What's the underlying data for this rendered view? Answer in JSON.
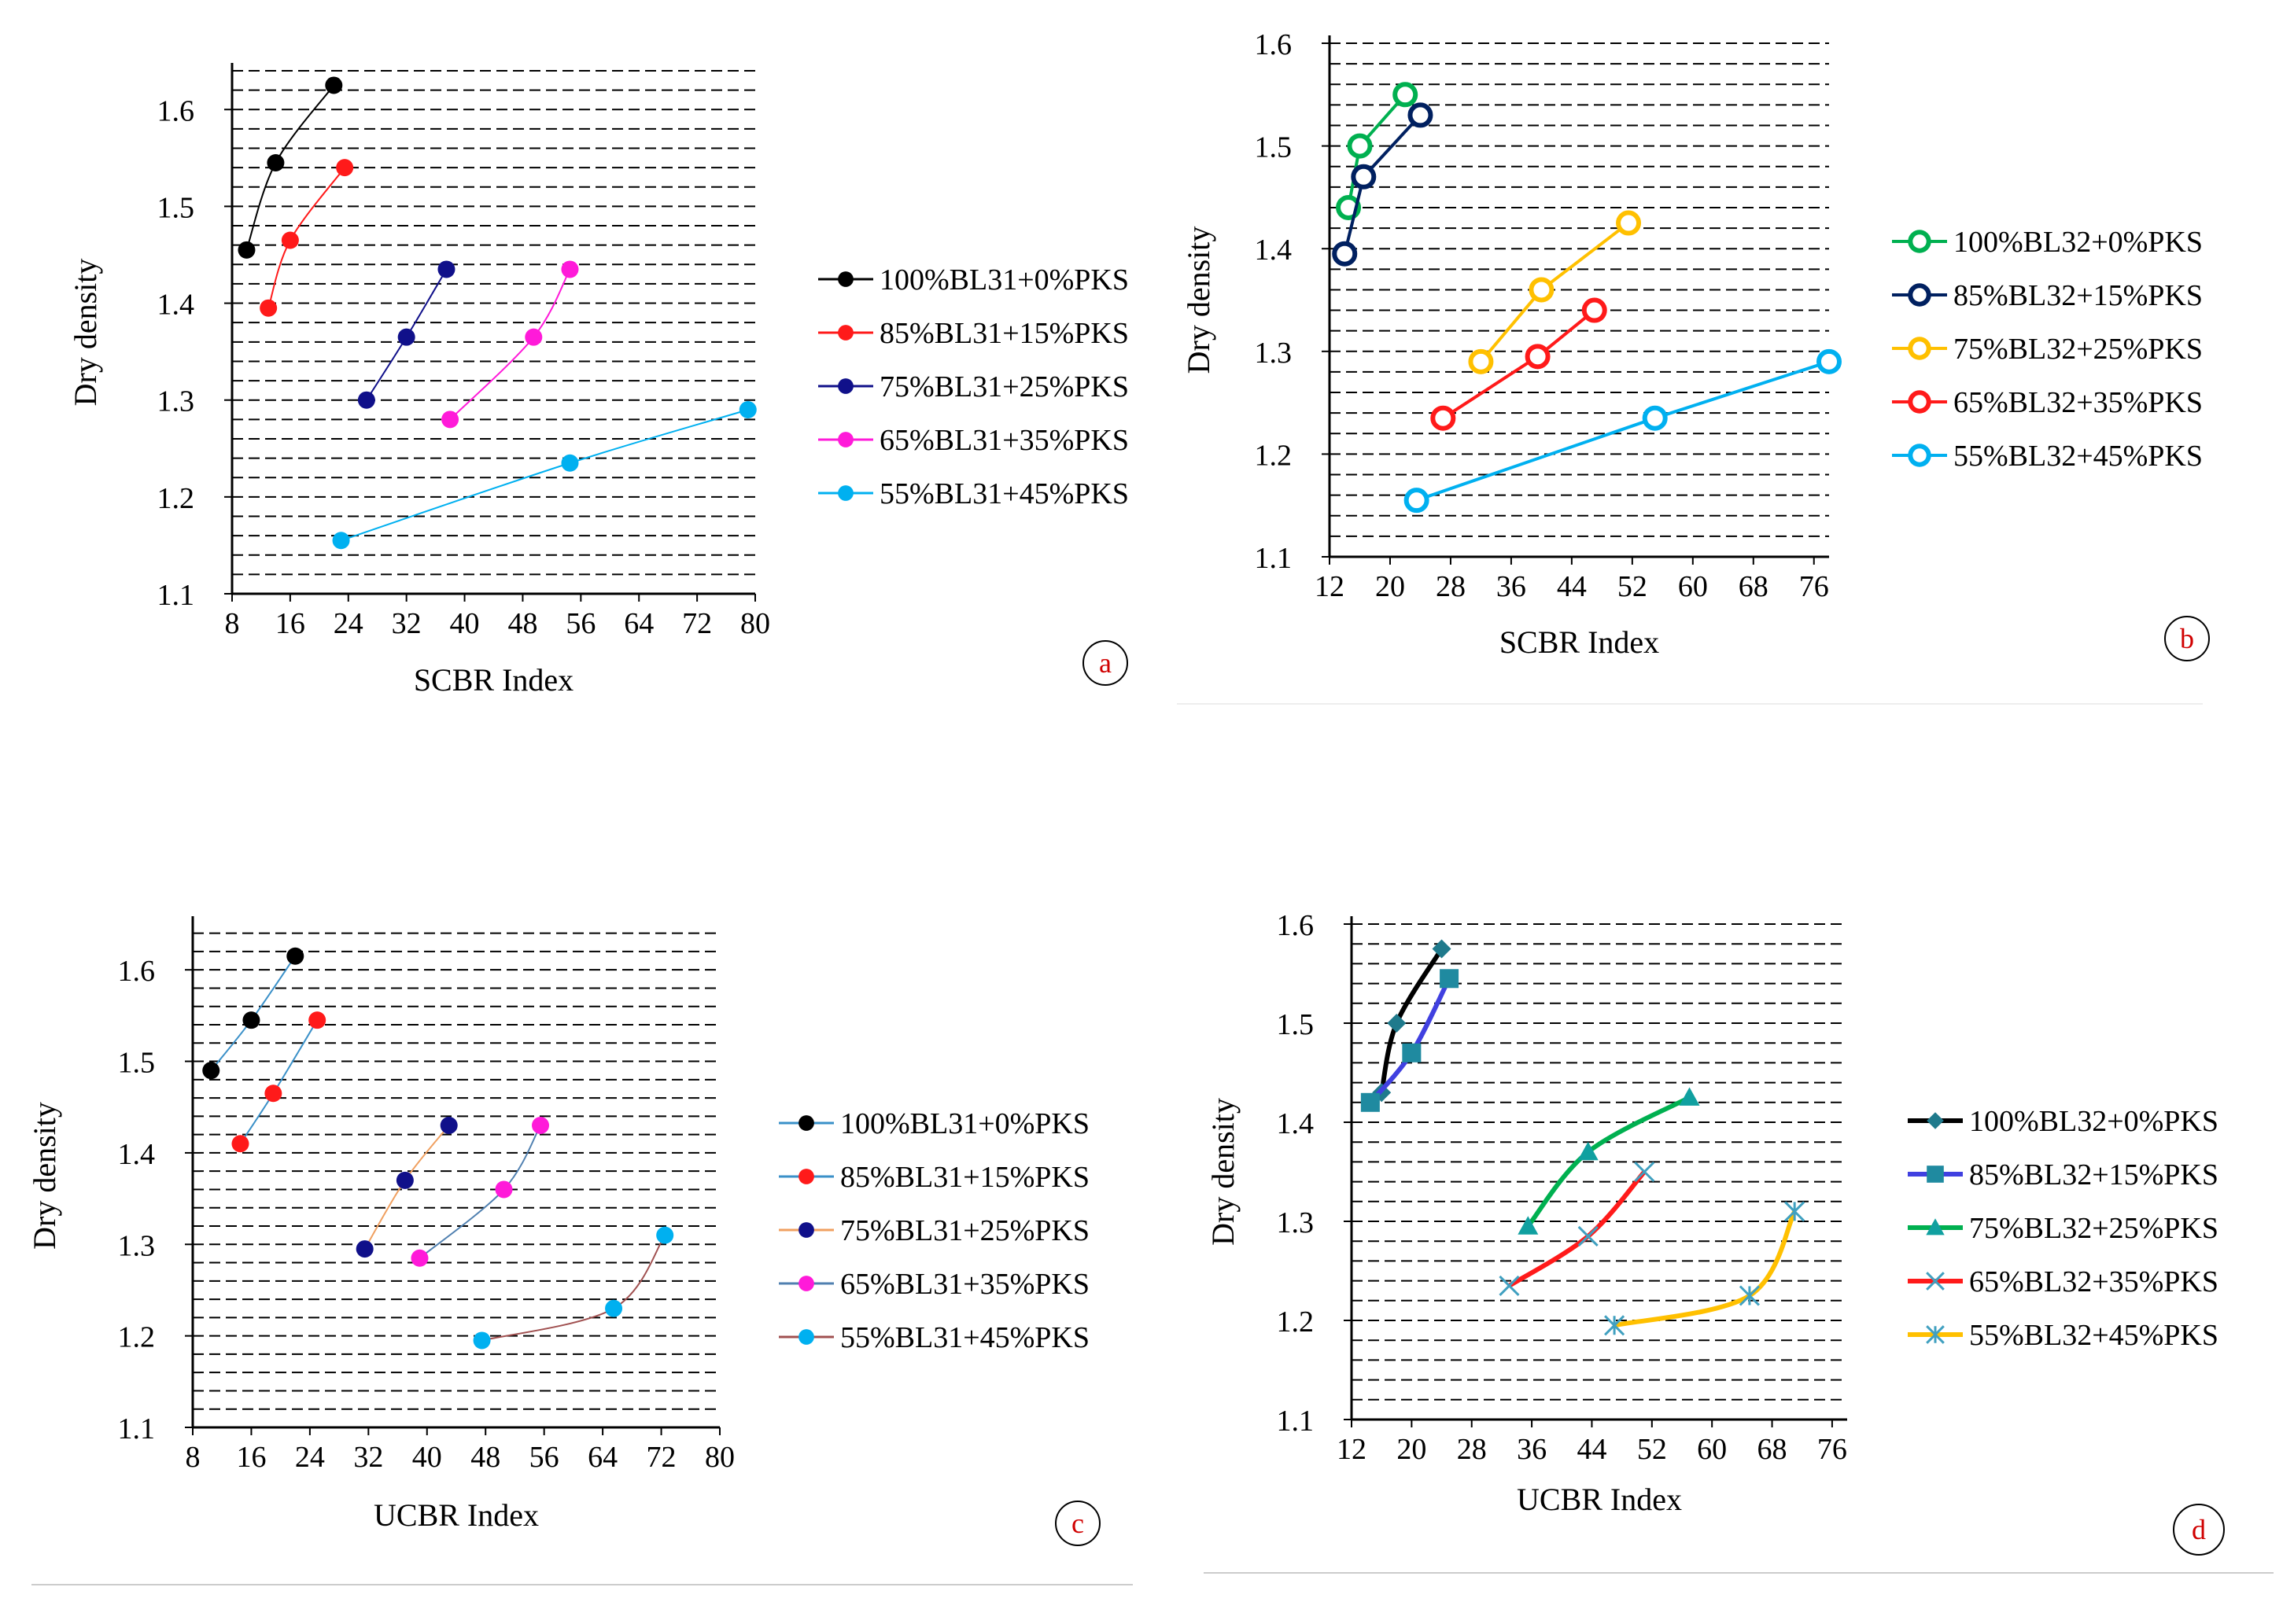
{
  "colors": {
    "black": "#000000",
    "red": "#ff1a1a",
    "navy": "#10108a",
    "magenta": "#ff1ad9",
    "cyan": "#00b0f0",
    "green": "#00b050",
    "dark_navy": "#002060",
    "orange": "#ffc000",
    "blue_violet": "#4040e0",
    "yellow": "#ffc000",
    "grid": "#000000",
    "panel_label": "#d00000"
  },
  "chart_data": [
    {
      "id": "a",
      "type": "line",
      "panel_label": "a",
      "xlabel": "SCBR Index",
      "ylabel": "Dry density",
      "xlim": [
        8,
        80
      ],
      "ylim": [
        1.1,
        1.64
      ],
      "xticks": [
        "8",
        "16",
        "24",
        "32",
        "40",
        "48",
        "56",
        "64",
        "72",
        "80"
      ],
      "yticks": [
        "1.1",
        "1.2",
        "1.3",
        "1.4",
        "1.5",
        "1.6"
      ],
      "grid": "dashed horizontal",
      "legend_position": "right",
      "series": [
        {
          "name": "100%BL31+0%PKS",
          "x": [
            10,
            14,
            22
          ],
          "y": [
            1.455,
            1.545,
            1.625
          ]
        },
        {
          "name": " 85%BL31+15%PKS",
          "x": [
            13,
            16,
            23.5
          ],
          "y": [
            1.395,
            1.465,
            1.54
          ]
        },
        {
          "name": "75%BL31+25%PKS",
          "x": [
            26.5,
            32,
            37.5
          ],
          "y": [
            1.3,
            1.365,
            1.435
          ]
        },
        {
          "name": "65%BL31+35%PKS",
          "x": [
            38,
            49.5,
            54.5
          ],
          "y": [
            1.28,
            1.365,
            1.435
          ]
        },
        {
          "name": "55%BL31+45%PKS",
          "x": [
            23,
            54.5,
            79
          ],
          "y": [
            1.155,
            1.235,
            1.29
          ]
        }
      ]
    },
    {
      "id": "b",
      "type": "line",
      "panel_label": "b",
      "xlabel": "SCBR Index",
      "ylabel": "Dry density",
      "xlim": [
        12,
        78
      ],
      "ylim": [
        1.1,
        1.6
      ],
      "xticks": [
        "12",
        "20",
        "28",
        "36",
        "44",
        "52",
        "60",
        "68",
        "76"
      ],
      "yticks": [
        "1.1",
        "1.2",
        "1.3",
        "1.4",
        "1.5",
        "1.6"
      ],
      "grid": "dashed horizontal",
      "legend_position": "right",
      "series": [
        {
          "name": "100%BL32+0%PKS",
          "x": [
            14.5,
            16,
            22
          ],
          "y": [
            1.44,
            1.5,
            1.55
          ]
        },
        {
          "name": "85%BL32+15%PKS",
          "x": [
            14,
            16.5,
            24
          ],
          "y": [
            1.395,
            1.47,
            1.53
          ]
        },
        {
          "name": "75%BL32+25%PKS",
          "x": [
            32,
            40,
            51.5
          ],
          "y": [
            1.29,
            1.36,
            1.425
          ]
        },
        {
          "name": "65%BL32+35%PKS",
          "x": [
            27,
            39.5,
            47
          ],
          "y": [
            1.235,
            1.295,
            1.34
          ]
        },
        {
          "name": "55%BL32+45%PKS",
          "x": [
            23.5,
            55,
            78
          ],
          "y": [
            1.155,
            1.235,
            1.29
          ]
        }
      ]
    },
    {
      "id": "c",
      "type": "line",
      "panel_label": "c",
      "xlabel": "UCBR Index",
      "ylabel": "Dry density",
      "xlim": [
        8,
        80
      ],
      "ylim": [
        1.1,
        1.65
      ],
      "xticks": [
        "8",
        "16",
        "24",
        "32",
        "40",
        "48",
        "56",
        "64",
        "72",
        "80"
      ],
      "yticks": [
        "1.1",
        "1.2",
        "1.3",
        "1.4",
        "1.5",
        "1.6"
      ],
      "grid": "dashed horizontal",
      "legend_position": "right",
      "series": [
        {
          "name": "100%BL31+0%PKS",
          "x": [
            10.5,
            16,
            22
          ],
          "y": [
            1.49,
            1.545,
            1.615
          ]
        },
        {
          "name": " 85%BL31+15%PKS",
          "x": [
            14.5,
            19,
            25
          ],
          "y": [
            1.41,
            1.465,
            1.545
          ]
        },
        {
          "name": "75%BL31+25%PKS",
          "x": [
            31.5,
            37,
            43
          ],
          "y": [
            1.295,
            1.37,
            1.43
          ]
        },
        {
          "name": "65%BL31+35%PKS",
          "x": [
            39,
            50.5,
            55.5
          ],
          "y": [
            1.285,
            1.36,
            1.43
          ]
        },
        {
          "name": "55%BL31+45%PKS",
          "x": [
            47.5,
            65.5,
            72.5
          ],
          "y": [
            1.195,
            1.23,
            1.31
          ]
        }
      ]
    },
    {
      "id": "d",
      "type": "line",
      "panel_label": "d",
      "xlabel": "UCBR Index",
      "ylabel": "Dry density",
      "xlim": [
        12,
        78
      ],
      "ylim": [
        1.1,
        1.6
      ],
      "xticks": [
        "12",
        "20",
        "28",
        "36",
        "44",
        "52",
        "60",
        "68",
        "76"
      ],
      "yticks": [
        "1.1",
        "1.2",
        "1.3",
        "1.4",
        "1.5",
        "1.6"
      ],
      "grid": "dashed horizontal",
      "legend_position": "right",
      "series": [
        {
          "name": "100%BL32+0%PKS",
          "x": [
            16,
            18,
            24
          ],
          "y": [
            1.43,
            1.5,
            1.575
          ]
        },
        {
          "name": "85%BL32+15%PKS",
          "x": [
            14.5,
            20,
            25
          ],
          "y": [
            1.42,
            1.47,
            1.545
          ]
        },
        {
          "name": "75%BL32+25%PKS",
          "x": [
            35.5,
            43.5,
            57
          ],
          "y": [
            1.295,
            1.37,
            1.425
          ]
        },
        {
          "name": "65%BL32+35%PKS",
          "x": [
            33,
            43.5,
            51
          ],
          "y": [
            1.235,
            1.285,
            1.35
          ]
        },
        {
          "name": "55%BL32+45%PKS",
          "x": [
            47,
            65,
            71
          ],
          "y": [
            1.195,
            1.225,
            1.31
          ]
        }
      ]
    }
  ]
}
